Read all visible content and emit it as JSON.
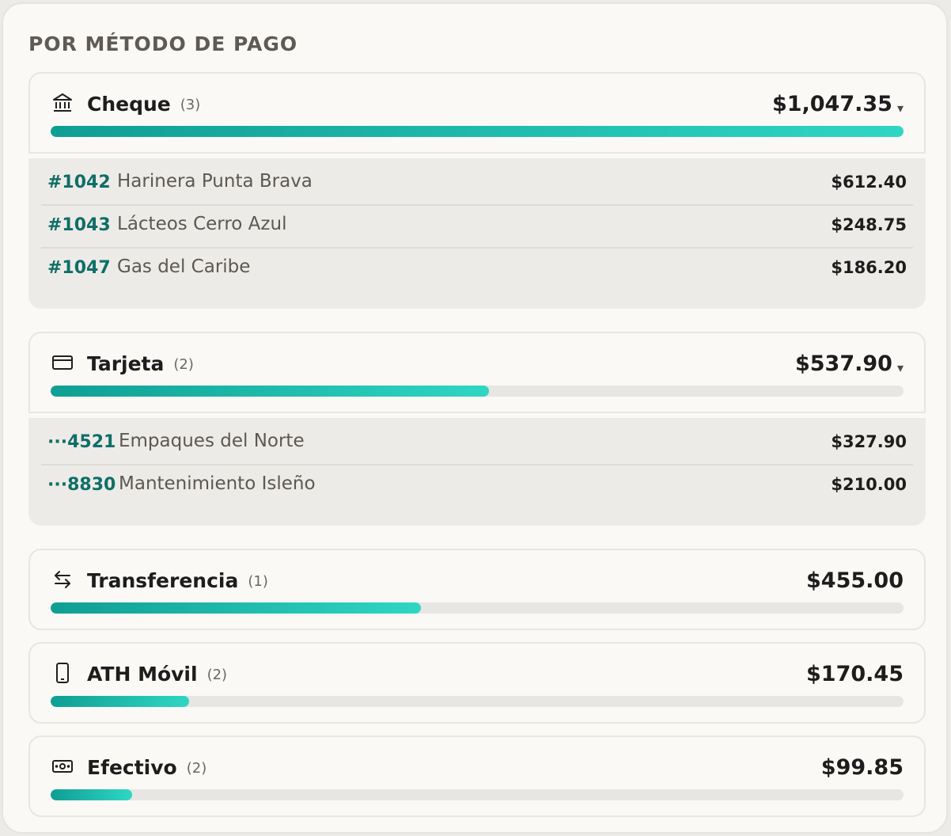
{
  "title": "POR MÉTODO DE PAGO",
  "methods": [
    {
      "name": "Cheque",
      "count": "(3)",
      "amount": "$1,047.35",
      "caret": "▾",
      "fraction": 1.0,
      "icon": "bank-icon",
      "items": [
        {
          "ref": "#1042",
          "name": "Harinera Punta Brava",
          "amount": "$612.40"
        },
        {
          "ref": "#1043",
          "name": "Lácteos Cerro Azul",
          "amount": "$248.75"
        },
        {
          "ref": "#1047",
          "name": "Gas del Caribe",
          "amount": "$186.20"
        }
      ]
    },
    {
      "name": "Tarjeta",
      "count": "(2)",
      "amount": "$537.90",
      "caret": "▾",
      "fraction": 0.5136,
      "icon": "credit-card-icon",
      "items": [
        {
          "ref": "···4521",
          "name": "Empaques del Norte",
          "amount": "$327.90"
        },
        {
          "ref": "···8830",
          "name": "Mantenimiento Isleño",
          "amount": "$210.00"
        }
      ]
    },
    {
      "name": "Transferencia",
      "count": "(1)",
      "amount": "$455.00",
      "fraction": 0.4344,
      "icon": "transfer-arrows-icon"
    },
    {
      "name": "ATH Móvil",
      "count": "(2)",
      "amount": "$170.45",
      "fraction": 0.1627,
      "icon": "mobile-phone-icon"
    },
    {
      "name": "Efectivo",
      "count": "(2)",
      "amount": "$99.85",
      "fraction": 0.0953,
      "icon": "cash-icon"
    }
  ],
  "colors": {
    "accent_start": "#0f9e93",
    "accent_end": "#2fd6c3",
    "ref_text": "#0f6e68"
  }
}
